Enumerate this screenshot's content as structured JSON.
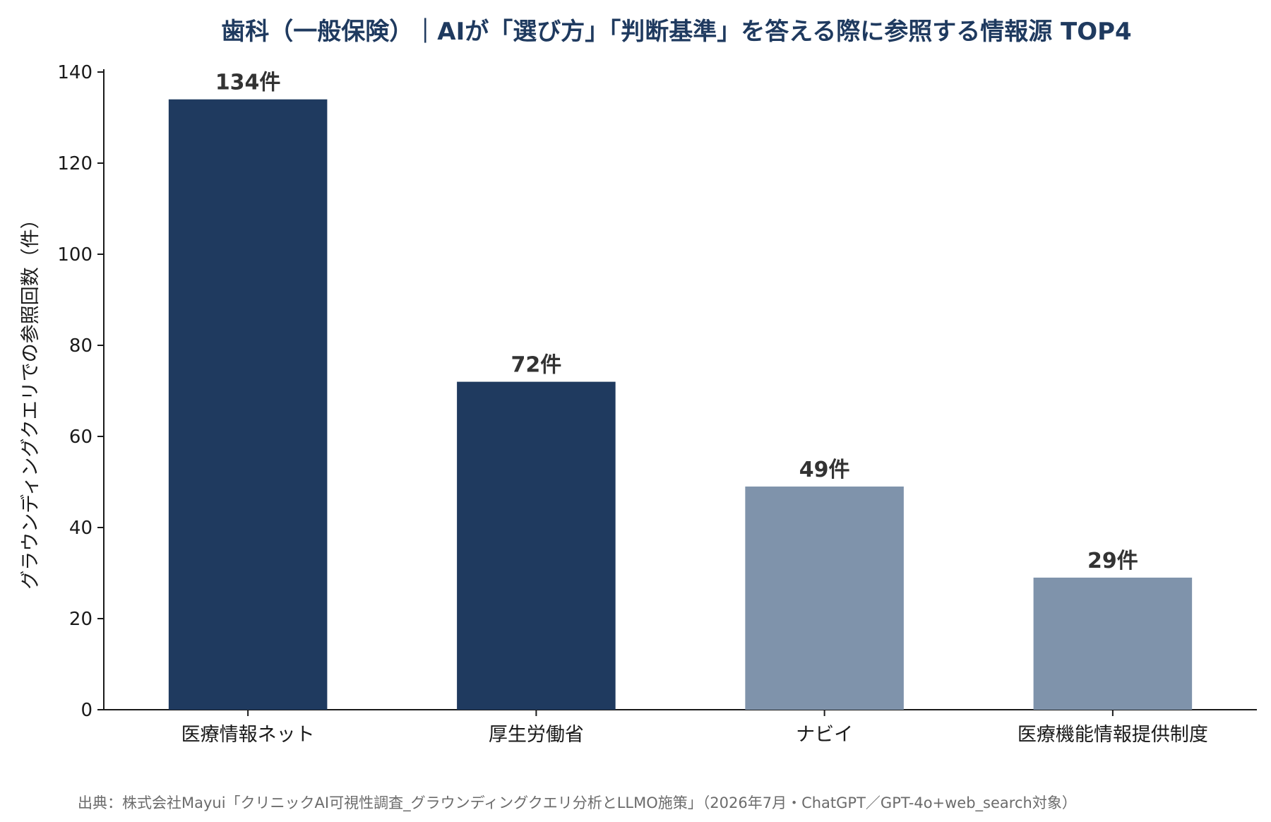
{
  "chart_data": {
    "type": "bar",
    "title": "歯科（一般保険）｜AIが「選び方」「判断基準」を答える際に参照する情報源 TOP4",
    "categories": [
      "医療情報ネット",
      "厚生労働省",
      "ナビイ",
      "医療機能情報提供制度"
    ],
    "values": [
      134,
      72,
      49,
      29
    ],
    "data_labels": [
      "134件",
      "72件",
      "49件",
      "29件"
    ],
    "bar_colors": [
      "#1f3a5f",
      "#1f3a5f",
      "#7f93ab",
      "#7f93ab"
    ],
    "xlabel": "",
    "ylabel": "グラウンディングクエリでの参照回数（件）",
    "ylim": [
      0,
      140
    ],
    "yticks": [
      0,
      20,
      40,
      60,
      80,
      100,
      120,
      140
    ],
    "grid": false,
    "legend": "none",
    "source": "出典：株式会社Mayui「クリニックAI可視性調査_グラウンディングクエリ分析とLLMO施策」（2026年7月・ChatGPT／GPT-4o+web_search対象）"
  },
  "colors": {
    "title": "#1f3a5f",
    "axis": "#1a1a1a",
    "dark_bar": "#1f3a5f",
    "light_bar": "#7f93ab",
    "source_text": "#6b6b6b"
  }
}
